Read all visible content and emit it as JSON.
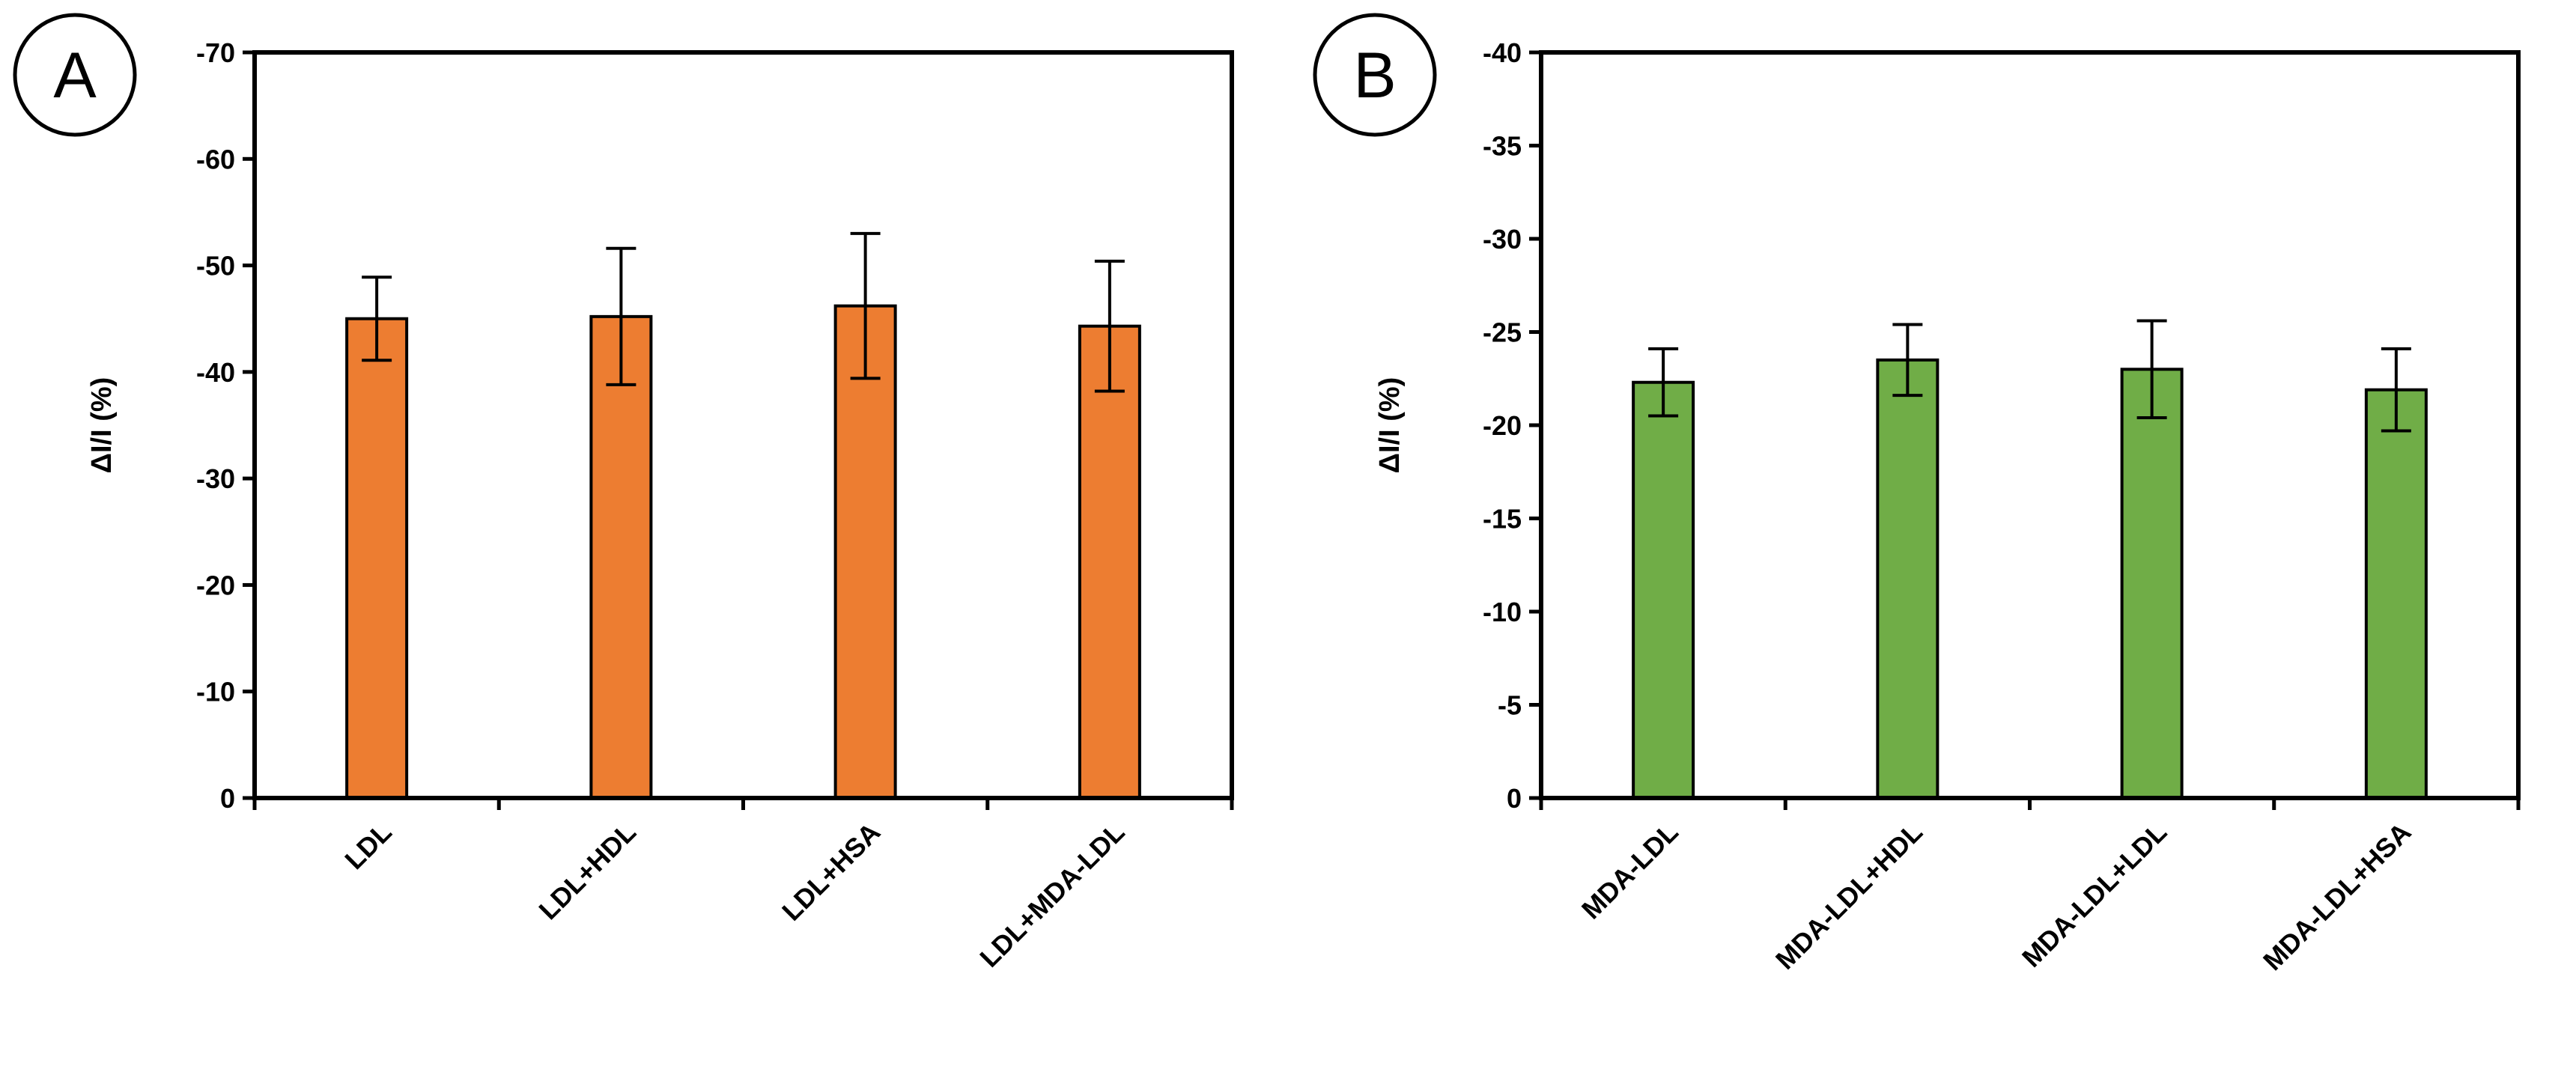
{
  "figure": {
    "description": "Two bar charts (A, B) of relative current change"
  },
  "chart_data": [
    {
      "type": "bar",
      "panel_label": "A",
      "title": "",
      "xlabel": "",
      "ylabel": "ΔI/I (%)",
      "ylim": [
        0,
        -70
      ],
      "yticks": [
        0,
        -10,
        -20,
        -30,
        -40,
        -50,
        -60,
        -70
      ],
      "ytick_labels": [
        "0",
        "-10",
        "-20",
        "-30",
        "-40",
        "-50",
        "-60",
        "-70"
      ],
      "categories": [
        "LDL",
        "LDL+HDL",
        "LDL+HSA",
        "LDL+MDA-LDL"
      ],
      "values": [
        -45.0,
        -45.2,
        -46.2,
        -44.3
      ],
      "errors": [
        3.9,
        6.4,
        6.8,
        6.1
      ],
      "bar_color": "#ed7d31",
      "grid": false
    },
    {
      "type": "bar",
      "panel_label": "B",
      "title": "",
      "xlabel": "",
      "ylabel": "ΔI/I (%)",
      "ylim": [
        0,
        -40
      ],
      "yticks": [
        0,
        -5,
        -10,
        -15,
        -20,
        -25,
        -30,
        -35,
        -40
      ],
      "ytick_labels": [
        "0",
        "-5",
        "-10",
        "-15",
        "-20",
        "-25",
        "-30",
        "-35",
        "-40"
      ],
      "categories": [
        "MDA-LDL",
        "MDA-LDL+HDL",
        "MDA-LDL+LDL",
        "MDA-LDL+HSA"
      ],
      "values": [
        -22.3,
        -23.5,
        -23.0,
        -21.9
      ],
      "errors": [
        1.8,
        1.9,
        2.6,
        2.2
      ],
      "bar_color": "#70ad47",
      "grid": false
    }
  ]
}
